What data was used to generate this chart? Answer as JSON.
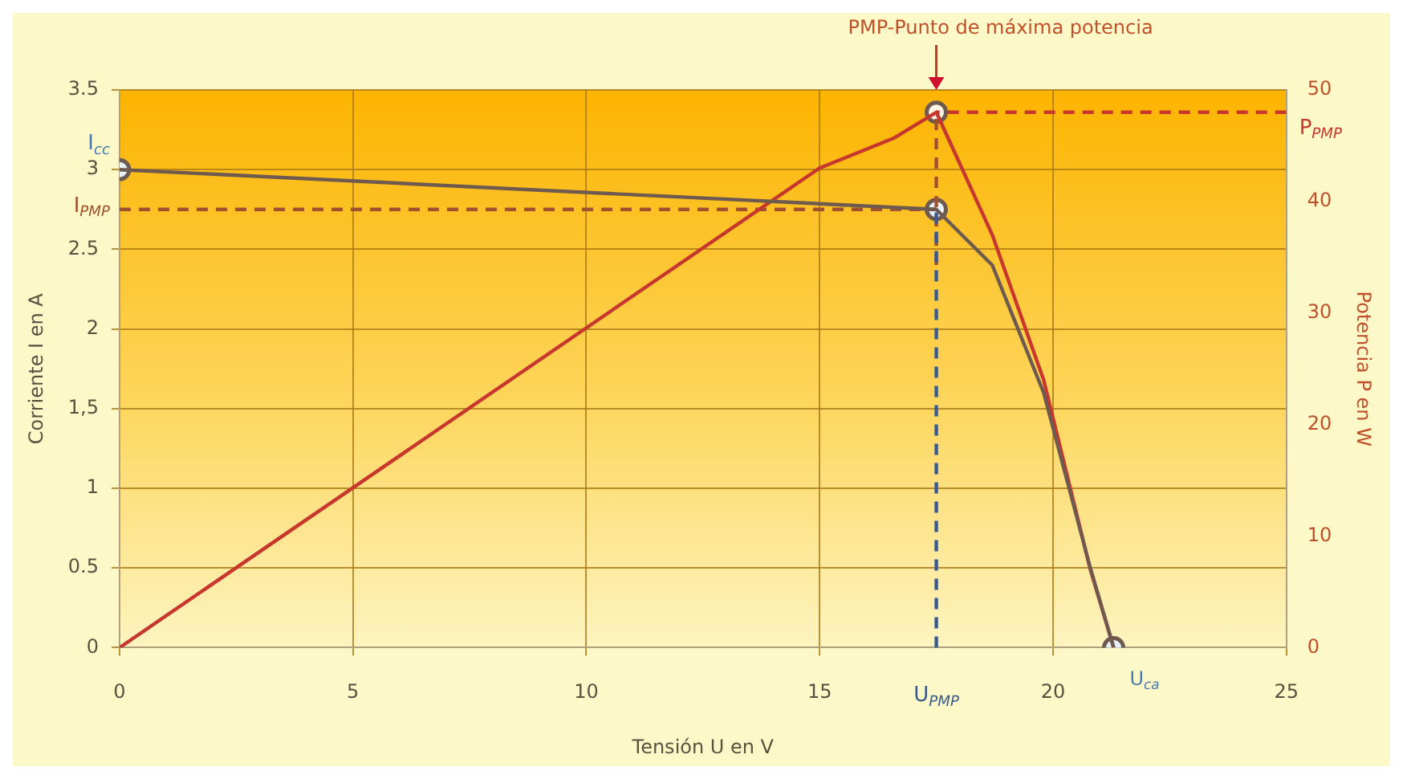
{
  "chart_data": {
    "type": "line",
    "xlabel": "Tensión U en V",
    "ylabel": "Corriente I en A",
    "y2label": "Potencia P en W",
    "xlim": [
      0,
      25
    ],
    "xticks": [
      0,
      5,
      10,
      15,
      20,
      25
    ],
    "ylim": [
      0,
      3.5
    ],
    "yticks": [
      0,
      0.5,
      1,
      {
        "value": 1.5,
        "label": "1,5"
      },
      2,
      2.5,
      3,
      3.5
    ],
    "y2lim": [
      0,
      50
    ],
    "y2ticks": [
      0,
      10,
      20,
      30,
      40,
      50
    ],
    "grid": true,
    "legend": false,
    "marker": "none",
    "series": [
      {
        "color": "#6e5a4e",
        "x": [
          0,
          17.5,
          18.7,
          19.8,
          20.8,
          21.3
        ],
        "values": [
          3,
          2.75,
          2.4,
          1.6,
          0.5,
          0
        ]
      },
      {
        "color": "#c8372d",
        "axis": "y2",
        "x": [
          0,
          15,
          16.6,
          17.5,
          18.7,
          19.8,
          20.8,
          21.3
        ],
        "values": [
          0,
          43,
          45.7,
          48,
          37,
          24,
          7,
          0
        ]
      },
      {
        "name": "I$_{PMP}$",
        "color": "#a0522d",
        "line_style": "dashed",
        "x": [
          0,
          17.5
        ],
        "values": [
          2.75,
          2.75
        ]
      },
      {
        "name": "U$_{PMP}$",
        "color": "#3a5a8c",
        "line_style": "dashed",
        "x": [
          17.5,
          17.5
        ],
        "values": [
          0,
          2.75
        ]
      },
      {
        "color": "#a0522d",
        "axis": "y2",
        "line_style": "dashed",
        "x": [
          17.5,
          17.5
        ],
        "values": [
          34.3,
          48
        ]
      },
      {
        "name": "P$_{PMP}$",
        "color": "#c8372d",
        "axis": "y2",
        "line_style": "dashed",
        "x": [
          25,
          17.5
        ],
        "values": [
          48,
          48
        ]
      },
      {
        "type": "scatter",
        "marker": "circle",
        "color": "#e6f2fa",
        "x": [
          0,
          17.5,
          21.3
        ],
        "values": [
          3,
          2.75,
          0
        ]
      },
      {
        "type": "scatter",
        "marker": "circle",
        "color": "#fff4e6",
        "axis": "y2",
        "x": [
          17.5
        ],
        "values": [
          48
        ]
      }
    ],
    "annotations": [
      "PMP-Punto de máxima potencia",
      {
        "text": "I$_{cc}$",
        "x": 0,
        "y": 3
      },
      {
        "text": "U$_{ca}$",
        "x": 21.3,
        "y": 0
      }
    ]
  }
}
